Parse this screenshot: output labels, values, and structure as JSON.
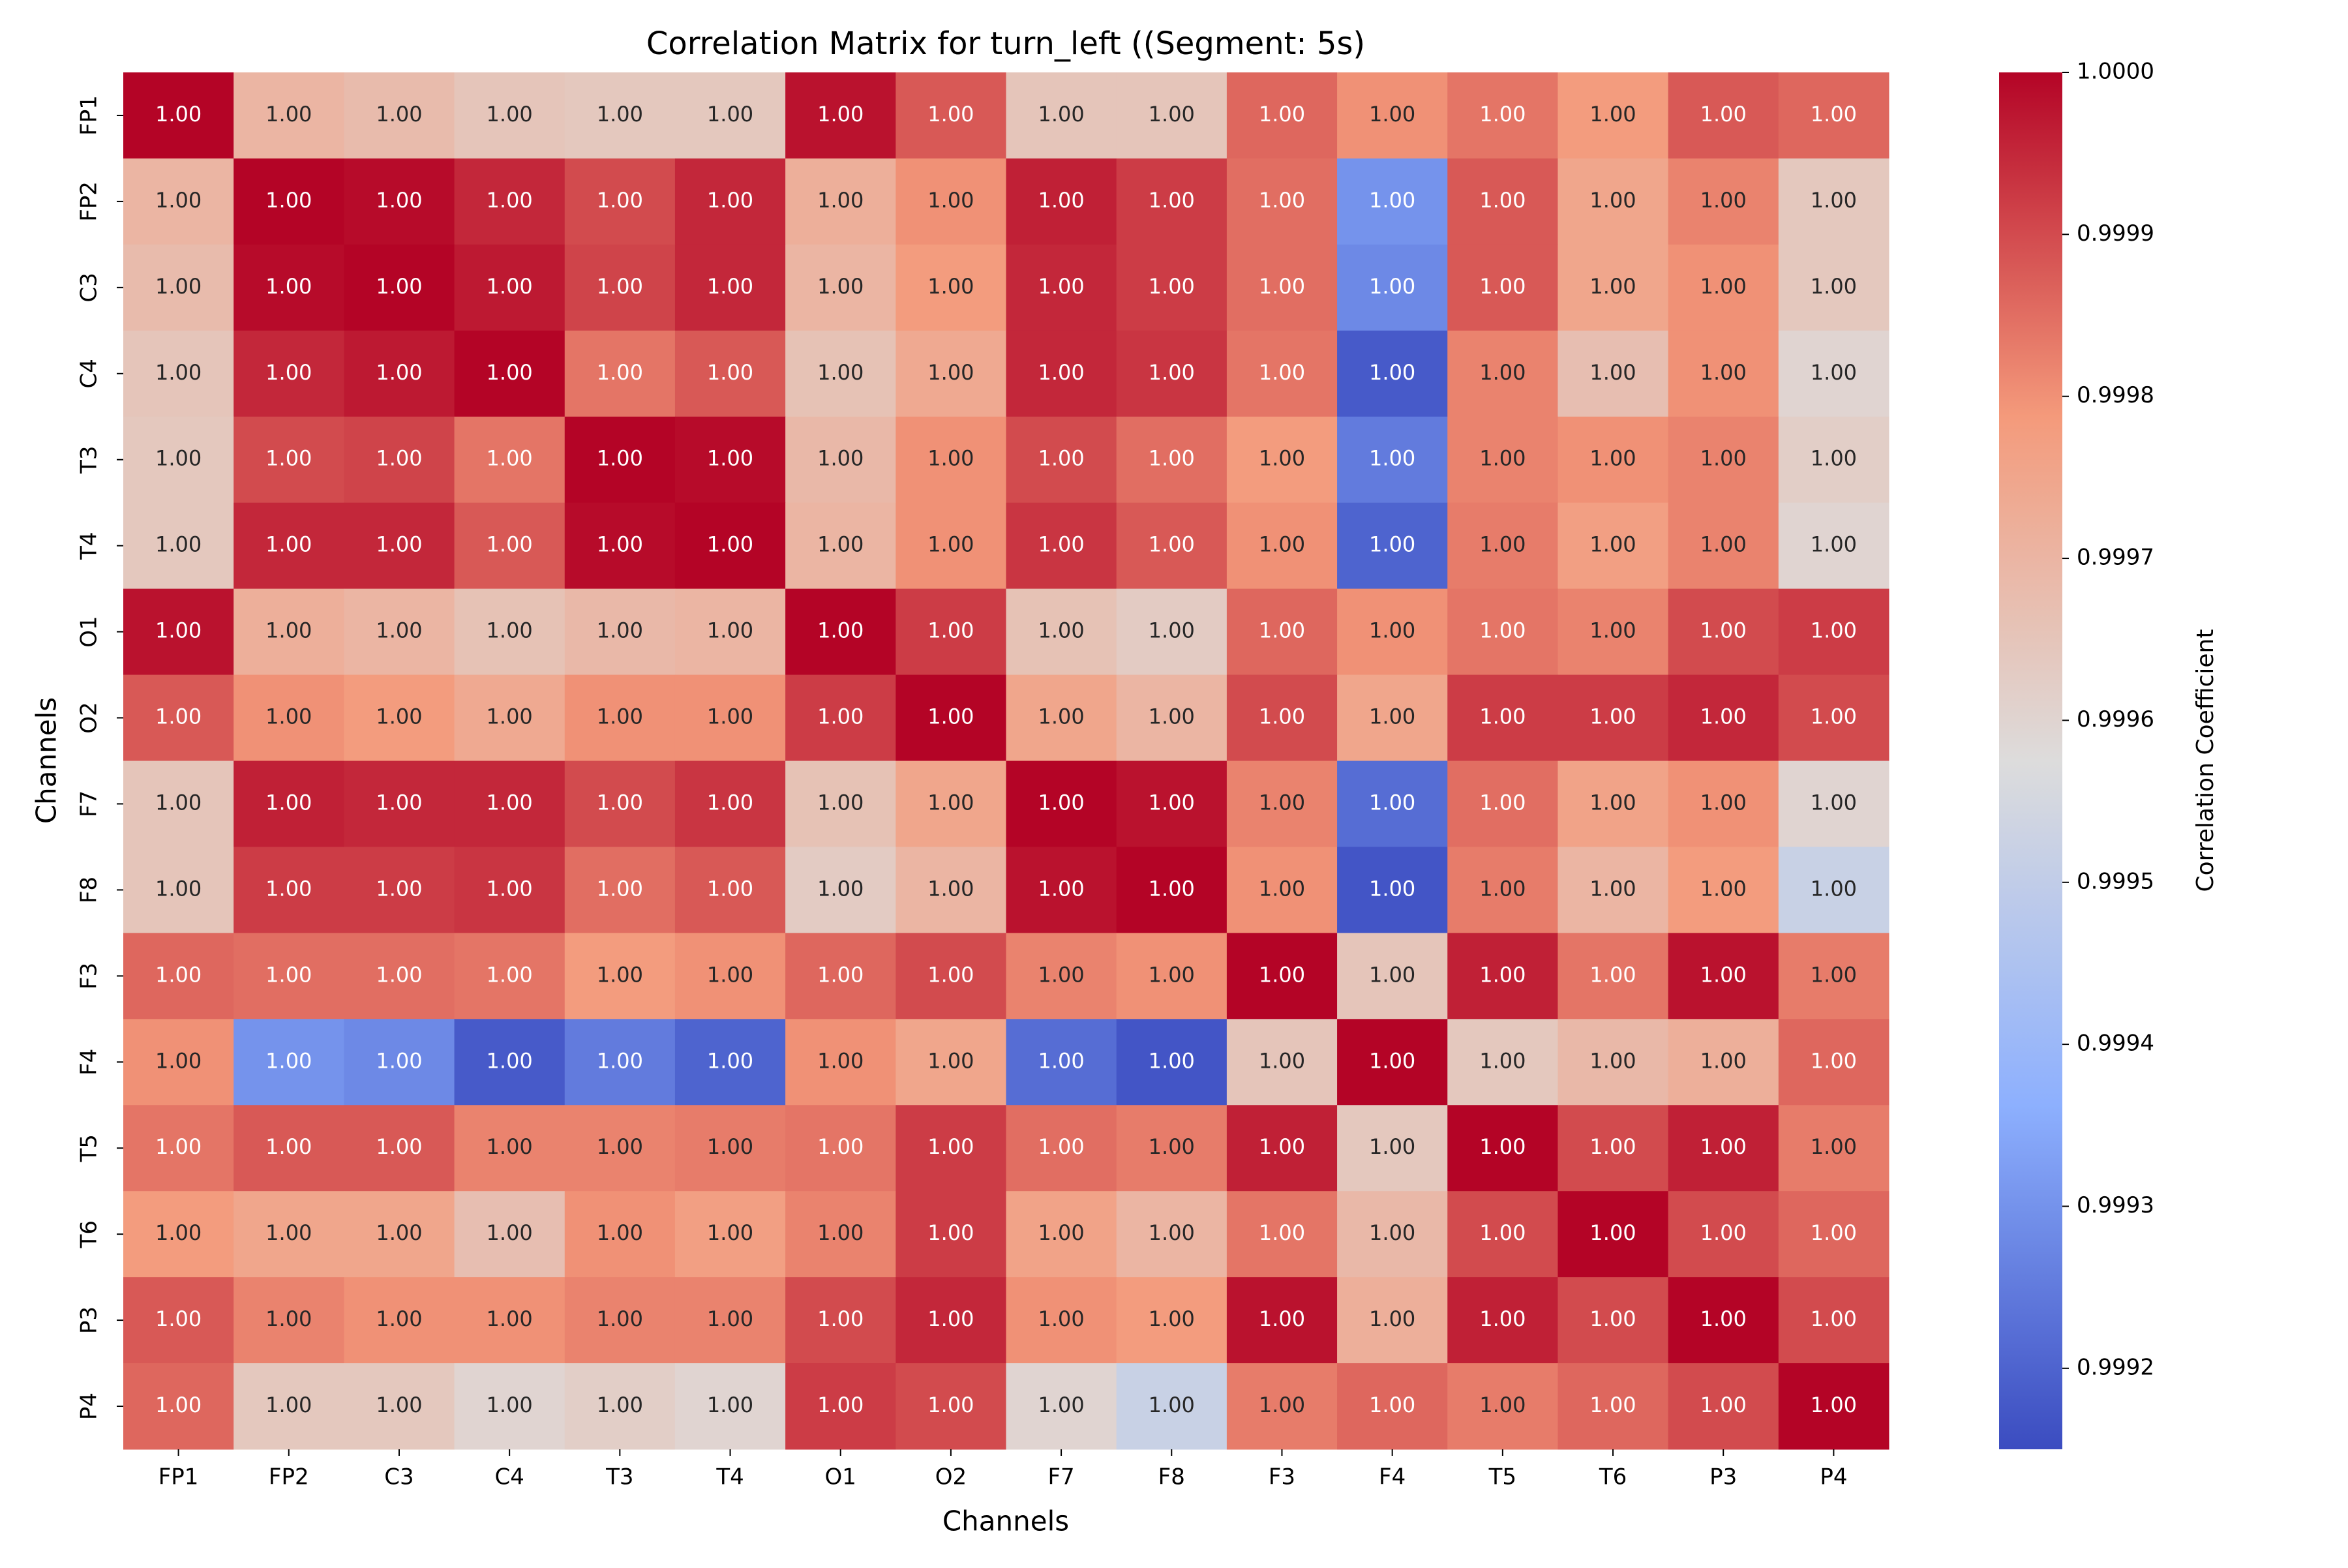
{
  "chart_data": {
    "type": "heatmap",
    "title": "Correlation Matrix for turn_left ((Segment: 5s)",
    "x_label": "Channels",
    "y_label": "Channels",
    "colorbar_label": "Correlation Coefficient",
    "colormap": "coolwarm",
    "x_categories": [
      "FP1",
      "FP2",
      "C3",
      "C4",
      "T3",
      "T4",
      "O1",
      "O2",
      "F7",
      "F8",
      "F3",
      "F4",
      "T5",
      "T6",
      "P3",
      "P4"
    ],
    "y_categories": [
      "FP1",
      "FP2",
      "C3",
      "C4",
      "T3",
      "T4",
      "O1",
      "O2",
      "F7",
      "F8",
      "F3",
      "F4",
      "T5",
      "T6",
      "P3",
      "P4"
    ],
    "values": [
      [
        1,
        0.9997,
        0.99968,
        0.99965,
        0.99964,
        0.99964,
        0.99998,
        0.99988,
        0.99965,
        0.99965,
        0.99986,
        0.9998,
        0.99984,
        0.99978,
        0.99988,
        0.99986
      ],
      [
        0.9997,
        1,
        0.99999,
        0.99995,
        0.9999,
        0.99995,
        0.99972,
        0.9998,
        0.99996,
        0.99992,
        0.99985,
        0.9993,
        0.99988,
        0.99975,
        0.99982,
        0.99964
      ],
      [
        0.99968,
        0.99999,
        1,
        0.99997,
        0.99991,
        0.99995,
        0.9997,
        0.99978,
        0.99995,
        0.99992,
        0.99985,
        0.99928,
        0.99988,
        0.99975,
        0.9998,
        0.99964
      ],
      [
        0.99965,
        0.99995,
        0.99997,
        1,
        0.99984,
        0.99988,
        0.99966,
        0.99974,
        0.99995,
        0.99993,
        0.99984,
        0.99918,
        0.99982,
        0.99967,
        0.9998,
        0.9996
      ],
      [
        0.99964,
        0.9999,
        0.99991,
        0.99984,
        1,
        0.99999,
        0.99969,
        0.9998,
        0.9999,
        0.99985,
        0.99978,
        0.99925,
        0.99982,
        0.9998,
        0.99982,
        0.99962
      ],
      [
        0.99964,
        0.99995,
        0.99995,
        0.99988,
        0.99999,
        1,
        0.9997,
        0.9998,
        0.99993,
        0.99988,
        0.9998,
        0.9992,
        0.99983,
        0.99977,
        0.99982,
        0.9996
      ],
      [
        0.99998,
        0.99972,
        0.9997,
        0.99966,
        0.99969,
        0.9997,
        1,
        0.99992,
        0.99966,
        0.99963,
        0.99986,
        0.9998,
        0.99984,
        0.99982,
        0.9999,
        0.99992
      ],
      [
        0.99988,
        0.9998,
        0.99978,
        0.99974,
        0.9998,
        0.9998,
        0.99992,
        1,
        0.99975,
        0.9997,
        0.9999,
        0.99975,
        0.99992,
        0.99992,
        0.99995,
        0.9999
      ],
      [
        0.99965,
        0.99996,
        0.99995,
        0.99995,
        0.9999,
        0.99993,
        0.99966,
        0.99975,
        1,
        0.99998,
        0.99982,
        0.99922,
        0.99985,
        0.99976,
        0.9998,
        0.9996
      ],
      [
        0.99965,
        0.99992,
        0.99992,
        0.99993,
        0.99985,
        0.99988,
        0.99963,
        0.9997,
        0.99998,
        1,
        0.9998,
        0.99917,
        0.99983,
        0.9997,
        0.99978,
        0.99952
      ],
      [
        0.99986,
        0.99985,
        0.99985,
        0.99984,
        0.99978,
        0.9998,
        0.99986,
        0.9999,
        0.99982,
        0.9998,
        1,
        0.99965,
        0.99996,
        0.99984,
        0.99998,
        0.99983
      ],
      [
        0.9998,
        0.9993,
        0.99928,
        0.99918,
        0.99925,
        0.9992,
        0.9998,
        0.99975,
        0.99922,
        0.99917,
        0.99965,
        1,
        0.99964,
        0.99969,
        0.99972,
        0.99986
      ],
      [
        0.99984,
        0.99988,
        0.99988,
        0.99982,
        0.99982,
        0.99983,
        0.99984,
        0.99992,
        0.99985,
        0.99983,
        0.99996,
        0.99964,
        1,
        0.9999,
        0.99996,
        0.99983
      ],
      [
        0.99978,
        0.99975,
        0.99975,
        0.99967,
        0.9998,
        0.99977,
        0.99982,
        0.99992,
        0.99976,
        0.9997,
        0.99984,
        0.99969,
        0.9999,
        1,
        0.9999,
        0.99986
      ],
      [
        0.99988,
        0.99982,
        0.9998,
        0.9998,
        0.99982,
        0.99982,
        0.9999,
        0.99995,
        0.9998,
        0.99978,
        0.99998,
        0.99972,
        0.99996,
        0.9999,
        1,
        0.9999
      ],
      [
        0.99986,
        0.99964,
        0.99964,
        0.9996,
        0.99962,
        0.9996,
        0.99992,
        0.9999,
        0.9996,
        0.99952,
        0.99983,
        0.99986,
        0.99983,
        0.99986,
        0.9999,
        1
      ]
    ],
    "value_labels": [
      [
        "1.00",
        "1.00",
        "1.00",
        "1.00",
        "1.00",
        "1.00",
        "1.00",
        "1.00",
        "1.00",
        "1.00",
        "1.00",
        "1.00",
        "1.00",
        "1.00",
        "1.00",
        "1.00"
      ],
      [
        "1.00",
        "1.00",
        "1.00",
        "1.00",
        "1.00",
        "1.00",
        "1.00",
        "1.00",
        "1.00",
        "1.00",
        "1.00",
        "1.00",
        "1.00",
        "1.00",
        "1.00",
        "1.00"
      ],
      [
        "1.00",
        "1.00",
        "1.00",
        "1.00",
        "1.00",
        "1.00",
        "1.00",
        "1.00",
        "1.00",
        "1.00",
        "1.00",
        "1.00",
        "1.00",
        "1.00",
        "1.00",
        "1.00"
      ],
      [
        "1.00",
        "1.00",
        "1.00",
        "1.00",
        "1.00",
        "1.00",
        "1.00",
        "1.00",
        "1.00",
        "1.00",
        "1.00",
        "1.00",
        "1.00",
        "1.00",
        "1.00",
        "1.00"
      ],
      [
        "1.00",
        "1.00",
        "1.00",
        "1.00",
        "1.00",
        "1.00",
        "1.00",
        "1.00",
        "1.00",
        "1.00",
        "1.00",
        "1.00",
        "1.00",
        "1.00",
        "1.00",
        "1.00"
      ],
      [
        "1.00",
        "1.00",
        "1.00",
        "1.00",
        "1.00",
        "1.00",
        "1.00",
        "1.00",
        "1.00",
        "1.00",
        "1.00",
        "1.00",
        "1.00",
        "1.00",
        "1.00",
        "1.00"
      ],
      [
        "1.00",
        "1.00",
        "1.00",
        "1.00",
        "1.00",
        "1.00",
        "1.00",
        "1.00",
        "1.00",
        "1.00",
        "1.00",
        "1.00",
        "1.00",
        "1.00",
        "1.00",
        "1.00"
      ],
      [
        "1.00",
        "1.00",
        "1.00",
        "1.00",
        "1.00",
        "1.00",
        "1.00",
        "1.00",
        "1.00",
        "1.00",
        "1.00",
        "1.00",
        "1.00",
        "1.00",
        "1.00",
        "1.00"
      ],
      [
        "1.00",
        "1.00",
        "1.00",
        "1.00",
        "1.00",
        "1.00",
        "1.00",
        "1.00",
        "1.00",
        "1.00",
        "1.00",
        "1.00",
        "1.00",
        "1.00",
        "1.00",
        "1.00"
      ],
      [
        "1.00",
        "1.00",
        "1.00",
        "1.00",
        "1.00",
        "1.00",
        "1.00",
        "1.00",
        "1.00",
        "1.00",
        "1.00",
        "1.00",
        "1.00",
        "1.00",
        "1.00",
        "1.00"
      ],
      [
        "1.00",
        "1.00",
        "1.00",
        "1.00",
        "1.00",
        "1.00",
        "1.00",
        "1.00",
        "1.00",
        "1.00",
        "1.00",
        "1.00",
        "1.00",
        "1.00",
        "1.00",
        "1.00"
      ],
      [
        "1.00",
        "1.00",
        "1.00",
        "1.00",
        "1.00",
        "1.00",
        "1.00",
        "1.00",
        "1.00",
        "1.00",
        "1.00",
        "1.00",
        "1.00",
        "1.00",
        "1.00",
        "1.00"
      ],
      [
        "1.00",
        "1.00",
        "1.00",
        "1.00",
        "1.00",
        "1.00",
        "1.00",
        "1.00",
        "1.00",
        "1.00",
        "1.00",
        "1.00",
        "1.00",
        "1.00",
        "1.00",
        "1.00"
      ],
      [
        "1.00",
        "1.00",
        "1.00",
        "1.00",
        "1.00",
        "1.00",
        "1.00",
        "1.00",
        "1.00",
        "1.00",
        "1.00",
        "1.00",
        "1.00",
        "1.00",
        "1.00",
        "1.00"
      ],
      [
        "1.00",
        "1.00",
        "1.00",
        "1.00",
        "1.00",
        "1.00",
        "1.00",
        "1.00",
        "1.00",
        "1.00",
        "1.00",
        "1.00",
        "1.00",
        "1.00",
        "1.00",
        "1.00"
      ],
      [
        "1.00",
        "1.00",
        "1.00",
        "1.00",
        "1.00",
        "1.00",
        "1.00",
        "1.00",
        "1.00",
        "1.00",
        "1.00",
        "1.00",
        "1.00",
        "1.00",
        "1.00",
        "1.00"
      ]
    ],
    "clim": [
      0.99915,
      1
    ],
    "cticks": [
      0.9992,
      0.9993,
      0.9994,
      0.9995,
      0.9996,
      0.9997,
      0.9998,
      0.9999,
      {
        "value": 1,
        "label": "1.0000"
      }
    ]
  }
}
